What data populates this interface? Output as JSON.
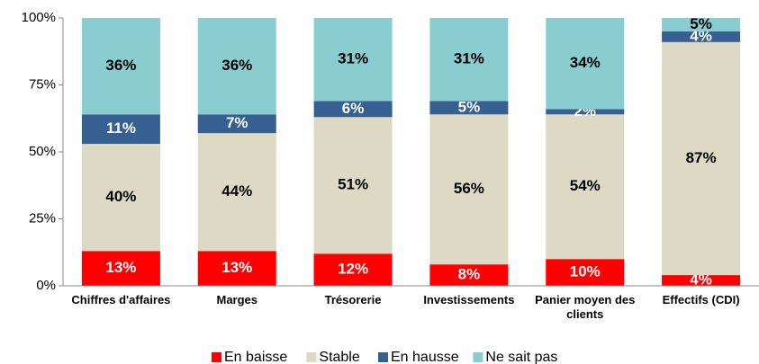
{
  "chart_data": {
    "type": "stacked_bar",
    "categories": [
      "Chiffres d'affaires",
      "Marges",
      "Trésorerie",
      "Investissements",
      "Panier moyen des clients",
      "Effectifs (CDI)"
    ],
    "series": [
      {
        "name": "En baisse",
        "color": "#ff0000",
        "values": [
          13,
          13,
          12,
          8,
          10,
          4
        ],
        "value_labels": [
          "13%",
          "13%",
          "12%",
          "8%",
          "10%",
          "4%"
        ]
      },
      {
        "name": "Stable",
        "color": "#ddd9c4",
        "values": [
          40,
          44,
          51,
          56,
          54,
          87
        ],
        "value_labels": [
          "40%",
          "44%",
          "51%",
          "56%",
          "54%",
          "87%"
        ]
      },
      {
        "name": "En hausse",
        "color": "#366092",
        "values": [
          11,
          7,
          6,
          5,
          2,
          4
        ],
        "value_labels": [
          "11%",
          "7%",
          "6%",
          "5%",
          "2%",
          "4%"
        ]
      },
      {
        "name": "Ne sait pas",
        "color": "#89cdd1",
        "values": [
          36,
          36,
          31,
          31,
          34,
          5
        ],
        "value_labels": [
          "36%",
          "36%",
          "31%",
          "31%",
          "34%",
          "5%"
        ]
      }
    ],
    "ylim": [
      0,
      100
    ],
    "yticks": [
      {
        "value": 0,
        "label": "0%"
      },
      {
        "value": 25,
        "label": "25%"
      },
      {
        "value": 50,
        "label": "50%"
      },
      {
        "value": 75,
        "label": "75%"
      },
      {
        "value": 100,
        "label": "100%"
      }
    ],
    "legend": "bottom"
  }
}
